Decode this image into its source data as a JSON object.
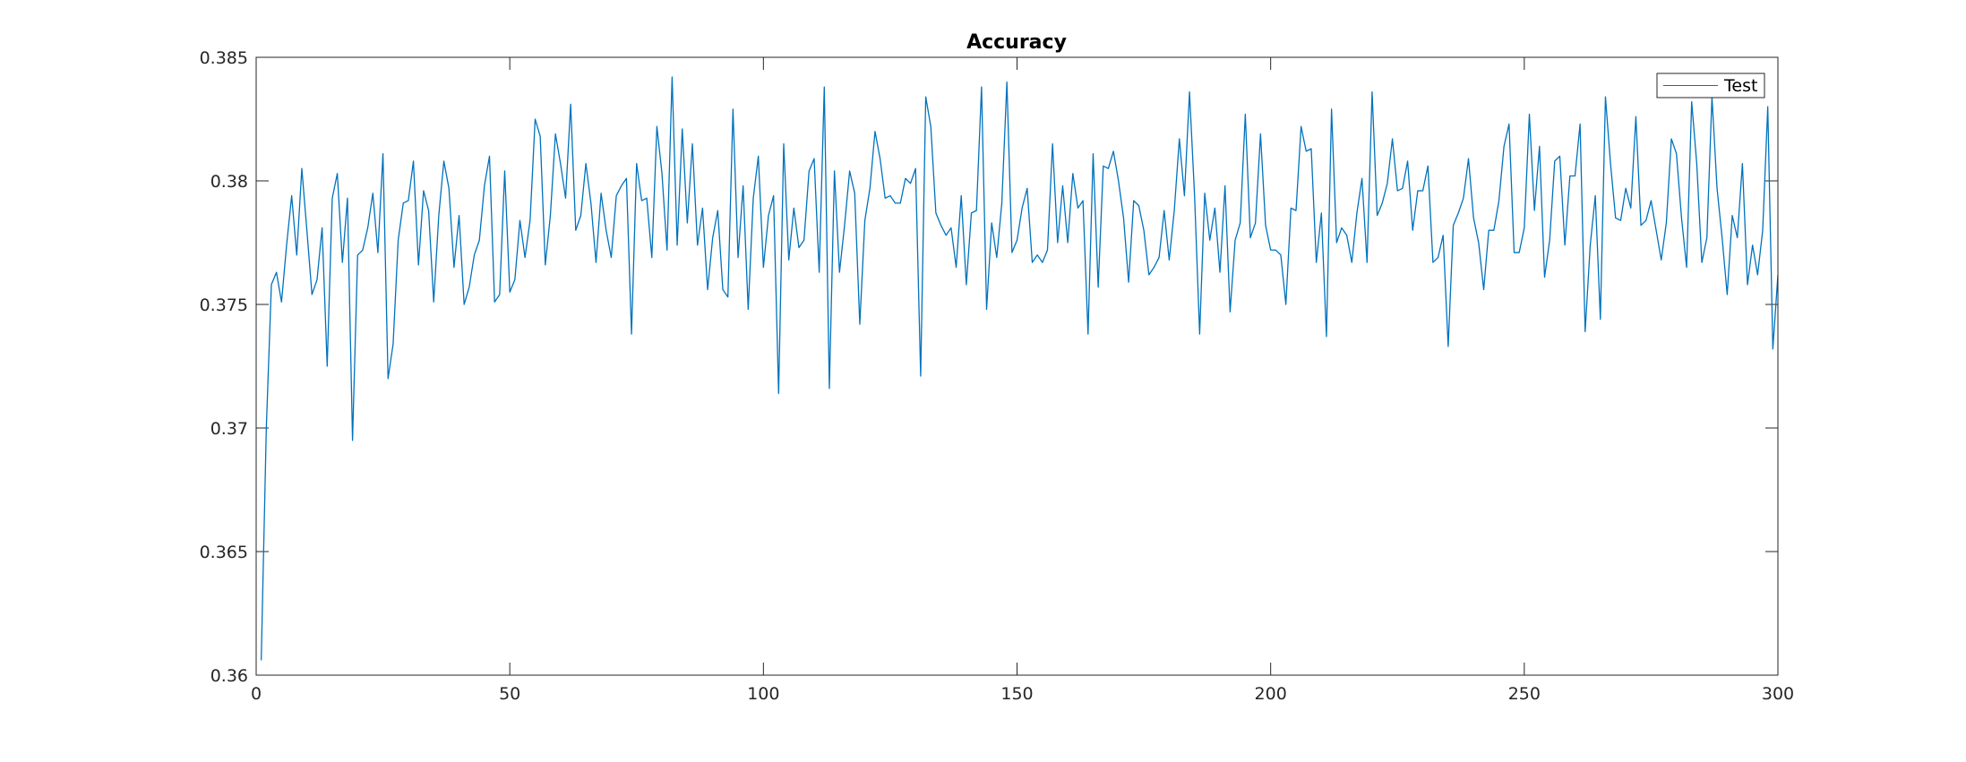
{
  "chart_data": {
    "type": "line",
    "title": "Accuracy",
    "xlabel": "",
    "ylabel": "",
    "xlim": [
      0,
      300
    ],
    "ylim": [
      0.36,
      0.385
    ],
    "xticks": [
      0,
      50,
      100,
      150,
      200,
      250,
      300
    ],
    "xtick_labels": [
      "0",
      "50",
      "100",
      "150",
      "200",
      "250",
      "300"
    ],
    "yticks": [
      0.36,
      0.365,
      0.37,
      0.375,
      0.38,
      0.385
    ],
    "ytick_labels": [
      "0.36",
      "0.365",
      "0.37",
      "0.375",
      "0.38",
      "0.385"
    ],
    "grid": false,
    "legend_position": "top-right",
    "series": [
      {
        "name": "Test",
        "color": "#0072BD",
        "x": [
          1,
          2,
          3,
          4,
          5,
          6,
          7,
          8,
          9,
          10,
          11,
          12,
          13,
          14,
          15,
          16,
          17,
          18,
          19,
          20,
          21,
          22,
          23,
          24,
          25,
          26,
          27,
          28,
          29,
          30,
          31,
          32,
          33,
          34,
          35,
          36,
          37,
          38,
          39,
          40,
          41,
          42,
          43,
          44,
          45,
          46,
          47,
          48,
          49,
          50,
          51,
          52,
          53,
          54,
          55,
          56,
          57,
          58,
          59,
          60,
          61,
          62,
          63,
          64,
          65,
          66,
          67,
          68,
          69,
          70,
          71,
          72,
          73,
          74,
          75,
          76,
          77,
          78,
          79,
          80,
          81,
          82,
          83,
          84,
          85,
          86,
          87,
          88,
          89,
          90,
          91,
          92,
          93,
          94,
          95,
          96,
          97,
          98,
          99,
          100,
          101,
          102,
          103,
          104,
          105,
          106,
          107,
          108,
          109,
          110,
          111,
          112,
          113,
          114,
          115,
          116,
          117,
          118,
          119,
          120,
          121,
          122,
          123,
          124,
          125,
          126,
          127,
          128,
          129,
          130,
          131,
          132,
          133,
          134,
          135,
          136,
          137,
          138,
          139,
          140,
          141,
          142,
          143,
          144,
          145,
          146,
          147,
          148,
          149,
          150,
          151,
          152,
          153,
          154,
          155,
          156,
          157,
          158,
          159,
          160,
          161,
          162,
          163,
          164,
          165,
          166,
          167,
          168,
          169,
          170,
          171,
          172,
          173,
          174,
          175,
          176,
          177,
          178,
          179,
          180,
          181,
          182,
          183,
          184,
          185,
          186,
          187,
          188,
          189,
          190,
          191,
          192,
          193,
          194,
          195,
          196,
          197,
          198,
          199,
          200,
          201,
          202,
          203,
          204,
          205,
          206,
          207,
          208,
          209,
          210,
          211,
          212,
          213,
          214,
          215,
          216,
          217,
          218,
          219,
          220,
          221,
          222,
          223,
          224,
          225,
          226,
          227,
          228,
          229,
          230,
          231,
          232,
          233,
          234,
          235,
          236,
          237,
          238,
          239,
          240,
          241,
          242,
          243,
          244,
          245,
          246,
          247,
          248,
          249,
          250,
          251,
          252,
          253,
          254,
          255,
          256,
          257,
          258,
          259,
          260,
          261,
          262,
          263,
          264,
          265,
          266,
          267,
          268,
          269,
          270,
          271,
          272,
          273,
          274,
          275,
          276,
          277,
          278,
          279,
          280,
          281,
          282,
          283,
          284,
          285,
          286,
          287,
          288,
          289,
          290,
          291,
          292,
          293,
          294,
          295,
          296,
          297,
          298,
          299,
          300
        ],
        "values": [
          0.3606,
          0.37,
          0.3758,
          0.3763,
          0.3751,
          0.3774,
          0.3794,
          0.377,
          0.3805,
          0.378,
          0.3754,
          0.376,
          0.3781,
          0.3725,
          0.3793,
          0.3803,
          0.3767,
          0.3793,
          0.3695,
          0.377,
          0.3772,
          0.3781,
          0.3795,
          0.3771,
          0.3811,
          0.372,
          0.3734,
          0.3776,
          0.3791,
          0.3792,
          0.3808,
          0.3766,
          0.3796,
          0.3788,
          0.3751,
          0.3786,
          0.3808,
          0.3797,
          0.3765,
          0.3786,
          0.375,
          0.3757,
          0.377,
          0.3776,
          0.3798,
          0.381,
          0.3751,
          0.3754,
          0.3804,
          0.3755,
          0.376,
          0.3784,
          0.3769,
          0.3784,
          0.3825,
          0.3818,
          0.3766,
          0.3786,
          0.3819,
          0.3807,
          0.3793,
          0.3831,
          0.378,
          0.3786,
          0.3807,
          0.3791,
          0.3767,
          0.3795,
          0.378,
          0.3769,
          0.3794,
          0.3798,
          0.3801,
          0.3738,
          0.3807,
          0.3792,
          0.3793,
          0.3769,
          0.3822,
          0.3803,
          0.3772,
          0.3842,
          0.3774,
          0.3821,
          0.3783,
          0.3815,
          0.3774,
          0.3789,
          0.3756,
          0.3777,
          0.3788,
          0.3756,
          0.3753,
          0.3829,
          0.3769,
          0.3798,
          0.3748,
          0.3793,
          0.381,
          0.3765,
          0.3786,
          0.3794,
          0.3714,
          0.3815,
          0.3768,
          0.3789,
          0.3773,
          0.3776,
          0.3804,
          0.3809,
          0.3763,
          0.3838,
          0.3716,
          0.3804,
          0.3763,
          0.3782,
          0.3804,
          0.3795,
          0.3742,
          0.3784,
          0.3797,
          0.382,
          0.3809,
          0.3793,
          0.3794,
          0.3791,
          0.3791,
          0.3801,
          0.3799,
          0.3805,
          0.3721,
          0.3834,
          0.3822,
          0.3787,
          0.3782,
          0.3778,
          0.3781,
          0.3765,
          0.3794,
          0.3758,
          0.3787,
          0.3788,
          0.3838,
          0.3748,
          0.3783,
          0.3769,
          0.3791,
          0.384,
          0.3771,
          0.3776,
          0.3789,
          0.3797,
          0.3767,
          0.377,
          0.3767,
          0.3772,
          0.3815,
          0.3775,
          0.3798,
          0.3775,
          0.3803,
          0.3789,
          0.3792,
          0.3738,
          0.3811,
          0.3757,
          0.3806,
          0.3805,
          0.3812,
          0.38,
          0.3785,
          0.3759,
          0.3792,
          0.379,
          0.378,
          0.3762,
          0.3765,
          0.3769,
          0.3788,
          0.3768,
          0.3788,
          0.3817,
          0.3794,
          0.3836,
          0.3794,
          0.3738,
          0.3795,
          0.3776,
          0.3789,
          0.3763,
          0.3798,
          0.3747,
          0.3776,
          0.3783,
          0.3827,
          0.3777,
          0.3783,
          0.3819,
          0.3782,
          0.3772,
          0.3772,
          0.377,
          0.375,
          0.3789,
          0.3788,
          0.3822,
          0.3812,
          0.3813,
          0.3767,
          0.3787,
          0.3737,
          0.3829,
          0.3775,
          0.3781,
          0.3778,
          0.3767,
          0.3787,
          0.3801,
          0.3767,
          0.3836,
          0.3786,
          0.3791,
          0.3799,
          0.3817,
          0.3796,
          0.3797,
          0.3808,
          0.378,
          0.3796,
          0.3796,
          0.3806,
          0.3767,
          0.3769,
          0.3778,
          0.3733,
          0.3782,
          0.3787,
          0.3793,
          0.3809,
          0.3785,
          0.3775,
          0.3756,
          0.378,
          0.378,
          0.3792,
          0.3814,
          0.3823,
          0.3771,
          0.3771,
          0.3781,
          0.3827,
          0.3788,
          0.3814,
          0.3761,
          0.3776,
          0.3808,
          0.381,
          0.3774,
          0.3802,
          0.3802,
          0.3823,
          0.3739,
          0.3774,
          0.3794,
          0.3744,
          0.3834,
          0.3807,
          0.3785,
          0.3784,
          0.3797,
          0.3789,
          0.3826,
          0.3782,
          0.3784,
          0.3792,
          0.378,
          0.3768,
          0.3783,
          0.3817,
          0.3811,
          0.3785,
          0.3765,
          0.3832,
          0.3807,
          0.3767,
          0.3777,
          0.3834,
          0.3797,
          0.3777,
          0.3754,
          0.3786,
          0.3777,
          0.3807,
          0.3758,
          0.3774,
          0.3762,
          0.378,
          0.383,
          0.3732,
          0.3762
        ]
      }
    ]
  }
}
